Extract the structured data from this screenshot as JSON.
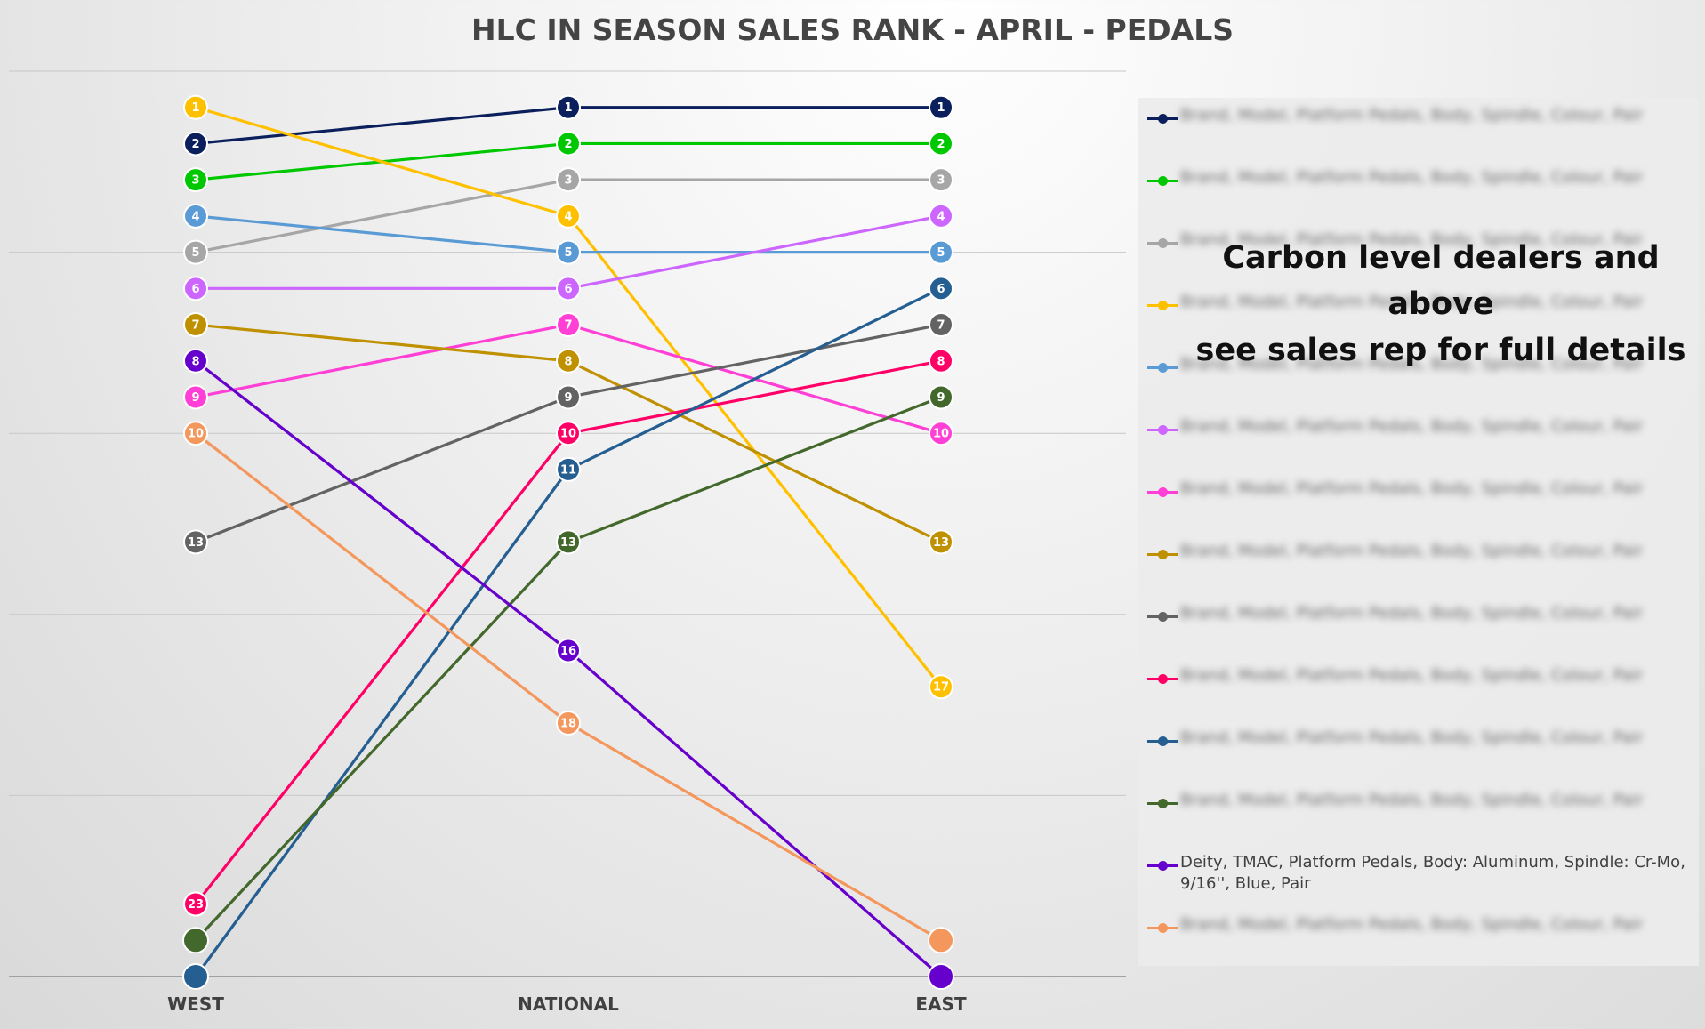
{
  "chart_data": {
    "type": "line",
    "title": "HLC IN SEASON SALES RANK - APRIL - PEDALS",
    "categories": [
      "WEST",
      "NATIONAL",
      "EAST"
    ],
    "y_axis": {
      "inverted": true,
      "min": 0,
      "max": 25,
      "gridlines": [
        0,
        5,
        10,
        15,
        20,
        25
      ]
    },
    "grid": true,
    "legend_position": "right",
    "series": [
      {
        "name": "",
        "color": "#0a1f5c",
        "values": [
          2,
          1,
          1
        ],
        "labels": [
          "2",
          "1",
          "1"
        ]
      },
      {
        "name": "",
        "color": "#00c800",
        "values": [
          3,
          2,
          2
        ],
        "labels": [
          "3",
          "2",
          "2"
        ]
      },
      {
        "name": "",
        "color": "#a6a6a6",
        "values": [
          5,
          3,
          3
        ],
        "labels": [
          "5",
          "3",
          "3"
        ]
      },
      {
        "name": "",
        "color": "#ffc000",
        "values": [
          1,
          4,
          17
        ],
        "labels": [
          "1",
          "4",
          "17"
        ]
      },
      {
        "name": "",
        "color": "#5b9bd5",
        "values": [
          4,
          5,
          5
        ],
        "labels": [
          "4",
          "5",
          "5"
        ]
      },
      {
        "name": "",
        "color": "#cc66ff",
        "values": [
          6,
          6,
          4
        ],
        "labels": [
          "6",
          "6",
          "4"
        ]
      },
      {
        "name": "",
        "color": "#ff3fd5",
        "values": [
          9,
          7,
          10
        ],
        "labels": [
          "9",
          "7",
          "10"
        ]
      },
      {
        "name": "",
        "color": "#bf9000",
        "values": [
          7,
          8,
          13
        ],
        "labels": [
          "7",
          "8",
          "13"
        ]
      },
      {
        "name": "",
        "color": "#636363",
        "values": [
          13,
          9,
          7
        ],
        "labels": [
          "13",
          "9",
          "7"
        ]
      },
      {
        "name": "",
        "color": "#ff0066",
        "values": [
          23,
          10,
          8
        ],
        "labels": [
          "23",
          "10",
          "8"
        ]
      },
      {
        "name": "",
        "color": "#255e91",
        "values": [
          25,
          11,
          6
        ],
        "labels": [
          "",
          "11",
          "6"
        ]
      },
      {
        "name": "",
        "color": "#43682b",
        "values": [
          24,
          13,
          9
        ],
        "labels": [
          "",
          "13",
          "9"
        ]
      },
      {
        "name": "Deity, TMAC, Platform Pedals, Body: Aluminum, Spindle: Cr-Mo, 9/16'', Blue, Pair",
        "color": "#6600cc",
        "values": [
          8,
          16,
          25
        ],
        "labels": [
          "8",
          "16",
          ""
        ]
      },
      {
        "name": "",
        "color": "#f4975c",
        "values": [
          10,
          18,
          24
        ],
        "labels": [
          "10",
          "18",
          ""
        ]
      }
    ]
  },
  "legend": {
    "placeholder_text": "Brand, Model, Platform Pedals, Body, Spindle, Colour, Pair"
  },
  "overlay_note": {
    "line1": "Carbon level dealers and above",
    "line2": "see sales rep for full details"
  }
}
